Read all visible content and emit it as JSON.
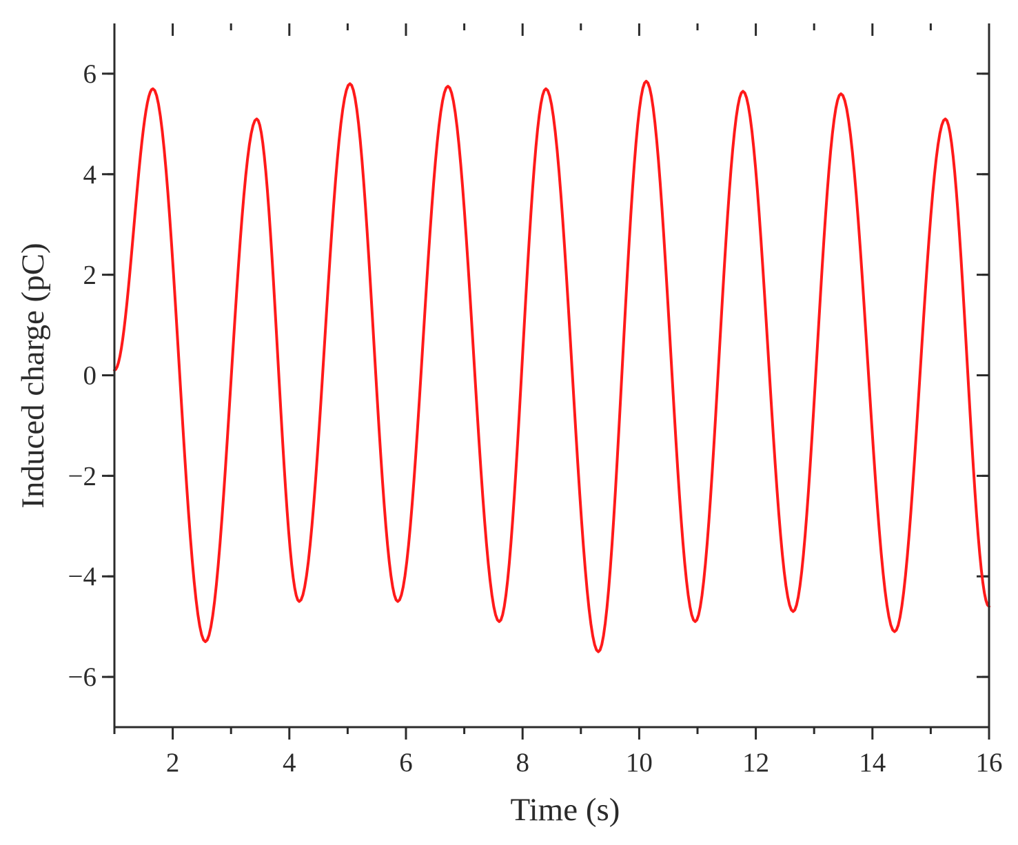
{
  "chart_data": {
    "type": "line",
    "title": "",
    "xlabel": "Time (s)",
    "ylabel": "Induced charge (pC)",
    "xlim": [
      1,
      16
    ],
    "ylim": [
      -7,
      7
    ],
    "xticks": [
      2,
      4,
      6,
      8,
      10,
      12,
      14,
      16
    ],
    "xtick_labels": [
      "2",
      "4",
      "6",
      "8",
      "10",
      "12",
      "14",
      "16"
    ],
    "yticks": [
      -6,
      -4,
      -2,
      0,
      2,
      4,
      6
    ],
    "ytick_labels": [
      "−6",
      "−4",
      "−2",
      "0",
      "2",
      "4",
      "6"
    ],
    "grid": false,
    "legend": "none",
    "series": [
      {
        "color": "#ff1a1a",
        "x": [
          1.0,
          1.66,
          2.56,
          3.44,
          4.17,
          5.04,
          5.86,
          6.72,
          7.6,
          8.4,
          9.3,
          10.12,
          10.96,
          11.78,
          12.64,
          13.46,
          14.38,
          15.25,
          16.0
        ],
        "y": [
          0.1,
          5.7,
          -5.3,
          5.1,
          -4.5,
          5.8,
          -4.5,
          5.75,
          -4.9,
          5.7,
          -5.5,
          5.85,
          -4.9,
          5.65,
          -4.7,
          5.6,
          -5.1,
          5.1,
          -4.6
        ]
      }
    ]
  }
}
